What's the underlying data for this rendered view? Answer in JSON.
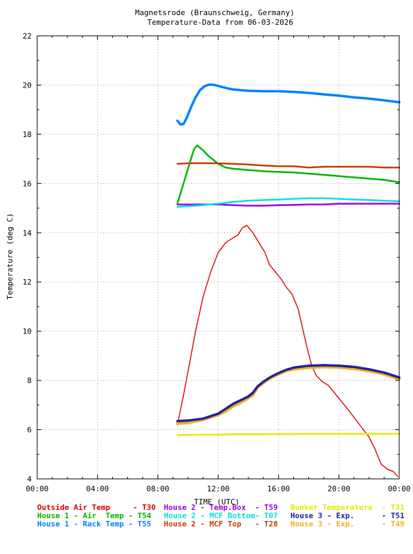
{
  "chart_data": {
    "type": "line",
    "title": "Magnetsrode (Braunschweig, Germany)",
    "subtitle": "Temperature-Data from 06-03-2026",
    "xlabel": "TIME (UTC)",
    "ylabel": "Temperature (deg C)",
    "xlim": [
      0,
      24
    ],
    "ylim": [
      4,
      22
    ],
    "x_ticks": [
      "00:00",
      "04:00",
      "08:00",
      "12:00",
      "16:00",
      "20:00",
      "00:00"
    ],
    "y_ticks": [
      4,
      6,
      8,
      10,
      12,
      14,
      16,
      18,
      20,
      22
    ],
    "grid": true,
    "legend_placement": "bottom",
    "series": [
      {
        "name": "Outside Air Temp",
        "sensor": "T30",
        "color": "#dd0000",
        "width": 1.4,
        "points": [
          [
            9.3,
            6.2
          ],
          [
            9.7,
            7.4
          ],
          [
            10.1,
            8.7
          ],
          [
            10.5,
            10.0
          ],
          [
            11.0,
            11.4
          ],
          [
            11.5,
            12.4
          ],
          [
            12.0,
            13.2
          ],
          [
            12.5,
            13.6
          ],
          [
            13.0,
            13.8
          ],
          [
            13.3,
            13.9
          ],
          [
            13.6,
            14.2
          ],
          [
            13.9,
            14.3
          ],
          [
            14.3,
            14.0
          ],
          [
            14.7,
            13.6
          ],
          [
            15.1,
            13.2
          ],
          [
            15.4,
            12.7
          ],
          [
            15.8,
            12.4
          ],
          [
            16.2,
            12.1
          ],
          [
            16.5,
            11.8
          ],
          [
            16.9,
            11.5
          ],
          [
            17.3,
            10.9
          ],
          [
            17.6,
            10.1
          ],
          [
            17.9,
            9.3
          ],
          [
            18.2,
            8.6
          ],
          [
            18.5,
            8.2
          ],
          [
            18.9,
            7.95
          ],
          [
            19.3,
            7.8
          ],
          [
            19.7,
            7.5
          ],
          [
            20.1,
            7.2
          ],
          [
            20.5,
            6.9
          ],
          [
            21.0,
            6.5
          ],
          [
            21.5,
            6.1
          ],
          [
            22.0,
            5.7
          ],
          [
            22.4,
            5.2
          ],
          [
            22.8,
            4.6
          ],
          [
            23.2,
            4.4
          ],
          [
            23.6,
            4.3
          ],
          [
            23.9,
            4.1
          ]
        ]
      },
      {
        "name": "House 1 - Air  Temp",
        "sensor": "T54",
        "color": "#00b400",
        "width": 2.5,
        "points": [
          [
            9.3,
            15.2
          ],
          [
            9.6,
            15.8
          ],
          [
            9.9,
            16.4
          ],
          [
            10.2,
            17.0
          ],
          [
            10.4,
            17.4
          ],
          [
            10.6,
            17.55
          ],
          [
            10.8,
            17.45
          ],
          [
            11.0,
            17.35
          ],
          [
            11.3,
            17.15
          ],
          [
            11.7,
            16.95
          ],
          [
            12.0,
            16.8
          ],
          [
            12.5,
            16.65
          ],
          [
            13.0,
            16.6
          ],
          [
            14.0,
            16.55
          ],
          [
            15.0,
            16.5
          ],
          [
            16.0,
            16.47
          ],
          [
            17.0,
            16.45
          ],
          [
            18.0,
            16.4
          ],
          [
            19.0,
            16.35
          ],
          [
            20.0,
            16.3
          ],
          [
            21.0,
            16.25
          ],
          [
            22.0,
            16.2
          ],
          [
            23.0,
            16.15
          ],
          [
            24.0,
            16.05
          ]
        ]
      },
      {
        "name": "House 1 - Rack Temp",
        "sensor": "T55",
        "color": "#0080ff",
        "width": 3.5,
        "points": [
          [
            9.3,
            18.55
          ],
          [
            9.5,
            18.4
          ],
          [
            9.7,
            18.42
          ],
          [
            9.9,
            18.65
          ],
          [
            10.2,
            19.1
          ],
          [
            10.5,
            19.5
          ],
          [
            10.8,
            19.8
          ],
          [
            11.1,
            19.95
          ],
          [
            11.4,
            20.02
          ],
          [
            11.8,
            20.0
          ],
          [
            12.2,
            19.93
          ],
          [
            12.6,
            19.87
          ],
          [
            13.0,
            19.82
          ],
          [
            14.0,
            19.77
          ],
          [
            15.0,
            19.75
          ],
          [
            16.0,
            19.75
          ],
          [
            17.0,
            19.72
          ],
          [
            18.0,
            19.68
          ],
          [
            19.0,
            19.62
          ],
          [
            20.0,
            19.57
          ],
          [
            21.0,
            19.5
          ],
          [
            22.0,
            19.45
          ],
          [
            23.0,
            19.38
          ],
          [
            24.0,
            19.3
          ]
        ]
      },
      {
        "name": "House 2 - Temp.Box",
        "sensor": "T59",
        "color": "#a000e0",
        "width": 2.5,
        "points": [
          [
            9.3,
            15.15
          ],
          [
            10.0,
            15.15
          ],
          [
            11.0,
            15.15
          ],
          [
            12.0,
            15.15
          ],
          [
            13.0,
            15.12
          ],
          [
            14.0,
            15.1
          ],
          [
            15.0,
            15.1
          ],
          [
            16.0,
            15.12
          ],
          [
            17.0,
            15.13
          ],
          [
            18.0,
            15.15
          ],
          [
            19.0,
            15.15
          ],
          [
            20.0,
            15.18
          ],
          [
            21.0,
            15.18
          ],
          [
            22.0,
            15.18
          ],
          [
            23.0,
            15.18
          ],
          [
            24.0,
            15.18
          ]
        ]
      },
      {
        "name": "House 2 - MCF Bottom",
        "sensor": "T07",
        "color": "#00e0e0",
        "width": 2.5,
        "points": [
          [
            9.3,
            15.05
          ],
          [
            10.0,
            15.08
          ],
          [
            11.0,
            15.12
          ],
          [
            12.0,
            15.18
          ],
          [
            13.0,
            15.25
          ],
          [
            14.0,
            15.3
          ],
          [
            15.0,
            15.33
          ],
          [
            16.0,
            15.35
          ],
          [
            17.0,
            15.38
          ],
          [
            18.0,
            15.4
          ],
          [
            19.0,
            15.4
          ],
          [
            20.0,
            15.38
          ],
          [
            21.0,
            15.35
          ],
          [
            22.0,
            15.33
          ],
          [
            23.0,
            15.3
          ],
          [
            24.0,
            15.28
          ]
        ]
      },
      {
        "name": "House 2 - MCF Top",
        "sensor": "T28",
        "color": "#c04000",
        "width": 2.5,
        "points": [
          [
            9.3,
            16.8
          ],
          [
            10.0,
            16.82
          ],
          [
            11.0,
            16.83
          ],
          [
            12.0,
            16.82
          ],
          [
            13.0,
            16.8
          ],
          [
            14.0,
            16.77
          ],
          [
            15.0,
            16.73
          ],
          [
            16.0,
            16.7
          ],
          [
            17.0,
            16.7
          ],
          [
            18.0,
            16.65
          ],
          [
            19.0,
            16.68
          ],
          [
            20.0,
            16.68
          ],
          [
            21.0,
            16.68
          ],
          [
            22.0,
            16.68
          ],
          [
            23.0,
            16.65
          ],
          [
            24.0,
            16.65
          ]
        ]
      },
      {
        "name": "Bunker Temperature",
        "sensor": "T31",
        "color": "#e8e800",
        "width": 2.5,
        "points": [
          [
            9.3,
            5.78
          ],
          [
            10.0,
            5.79
          ],
          [
            11.0,
            5.8
          ],
          [
            12.0,
            5.8
          ],
          [
            13.0,
            5.81
          ],
          [
            14.0,
            5.81
          ],
          [
            15.0,
            5.81
          ],
          [
            16.0,
            5.82
          ],
          [
            17.0,
            5.82
          ],
          [
            18.0,
            5.83
          ],
          [
            19.0,
            5.83
          ],
          [
            20.0,
            5.83
          ],
          [
            21.0,
            5.83
          ],
          [
            22.0,
            5.83
          ],
          [
            23.0,
            5.83
          ],
          [
            24.0,
            5.83
          ]
        ]
      },
      {
        "name": "House 3 - Exp.",
        "sensor": "T49",
        "color": "#f0b020",
        "width": 4,
        "points": [
          [
            9.3,
            6.25
          ],
          [
            10.0,
            6.28
          ],
          [
            11.0,
            6.4
          ],
          [
            12.0,
            6.6
          ],
          [
            12.5,
            6.75
          ],
          [
            13.0,
            6.95
          ],
          [
            13.5,
            7.1
          ],
          [
            14.0,
            7.28
          ],
          [
            14.3,
            7.4
          ],
          [
            14.6,
            7.7
          ],
          [
            15.0,
            7.9
          ],
          [
            15.5,
            8.1
          ],
          [
            16.0,
            8.25
          ],
          [
            16.5,
            8.38
          ],
          [
            17.0,
            8.45
          ],
          [
            18.0,
            8.52
          ],
          [
            19.0,
            8.55
          ],
          [
            20.0,
            8.53
          ],
          [
            21.0,
            8.47
          ],
          [
            22.0,
            8.38
          ],
          [
            23.0,
            8.25
          ],
          [
            24.0,
            8.05
          ]
        ]
      },
      {
        "name": "House 3 - Exp.",
        "sensor": "T51",
        "color": "#2020a0",
        "width": 3.5,
        "points": [
          [
            9.3,
            6.35
          ],
          [
            10.0,
            6.37
          ],
          [
            11.0,
            6.45
          ],
          [
            12.0,
            6.65
          ],
          [
            12.5,
            6.85
          ],
          [
            13.0,
            7.05
          ],
          [
            13.5,
            7.2
          ],
          [
            14.0,
            7.35
          ],
          [
            14.3,
            7.5
          ],
          [
            14.6,
            7.75
          ],
          [
            15.0,
            7.95
          ],
          [
            15.5,
            8.15
          ],
          [
            16.0,
            8.3
          ],
          [
            16.5,
            8.43
          ],
          [
            17.0,
            8.52
          ],
          [
            18.0,
            8.6
          ],
          [
            19.0,
            8.62
          ],
          [
            20.0,
            8.6
          ],
          [
            21.0,
            8.55
          ],
          [
            22.0,
            8.45
          ],
          [
            23.0,
            8.32
          ],
          [
            24.0,
            8.12
          ]
        ]
      }
    ],
    "legend": [
      {
        "label": "Outside Air Temp     - T30",
        "color": "#dd0000"
      },
      {
        "label": "House 2 - Temp.Box  - T59",
        "color": "#a000e0"
      },
      {
        "label": "Bunker Temperature  - T31",
        "color": "#e8e800"
      },
      {
        "label": "House 1 - Air  Temp - T54",
        "color": "#00b400"
      },
      {
        "label": "House 2 - MCF Bottom- T07",
        "color": "#00e0e0"
      },
      {
        "label": "House 3 - Exp.      - T51",
        "color": "#2020a0"
      },
      {
        "label": "House 1 - Rack Temp - T55",
        "color": "#0080ff"
      },
      {
        "label": "House 2 - MCF Top   - T28",
        "color": "#c04000"
      },
      {
        "label": "House 3 - Exp.      - T49",
        "color": "#f0b020"
      }
    ]
  }
}
